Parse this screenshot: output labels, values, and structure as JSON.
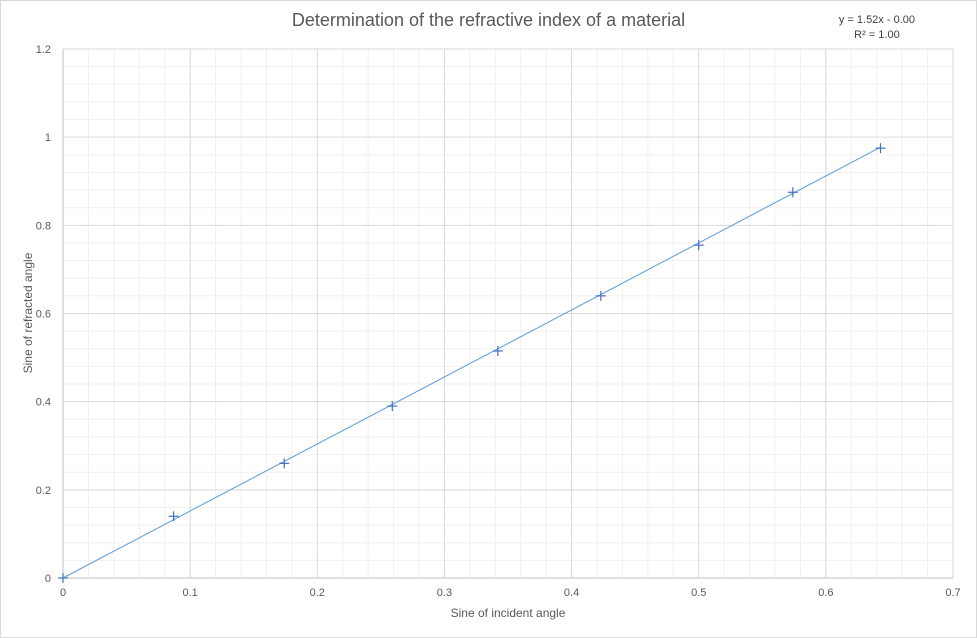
{
  "chart_data": {
    "type": "scatter",
    "title": "Determination of the  refractive index of a material",
    "xlabel": "Sine of incident angle",
    "ylabel": "Sine of refracted angle",
    "xlim": [
      0,
      0.7
    ],
    "ylim": [
      0,
      1.2
    ],
    "x_ticks": [
      "0",
      "0.1",
      "0.2",
      "0.3",
      "0.4",
      "0.5",
      "0.6",
      "0.7"
    ],
    "y_ticks": [
      "0",
      "0.2",
      "0.4",
      "0.6",
      "0.8",
      "1",
      "1.2"
    ],
    "grid": true,
    "marker": "plus",
    "series": [
      {
        "x": [
          0,
          0.087,
          0.174,
          0.259,
          0.342,
          0.423,
          0.5,
          0.574,
          0.643
        ],
        "y": [
          0,
          0.14,
          0.26,
          0.39,
          0.515,
          0.64,
          0.755,
          0.875,
          0.975
        ],
        "color": "#4472c4"
      }
    ],
    "trendline": {
      "type": "linear",
      "slope": 1.52,
      "intercept": 0,
      "x_range": [
        0,
        0.643
      ],
      "color": "#5b9bd5",
      "equation_label": "y = 1.52x - 0.00",
      "r2_label": "R² = 1.00"
    }
  }
}
